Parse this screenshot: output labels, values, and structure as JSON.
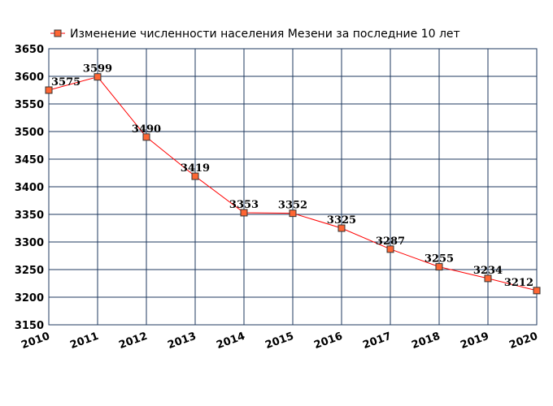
{
  "chart_data": {
    "type": "line",
    "title": "Изменение численности населения Мезени за последние 10 лет",
    "x": [
      "2010",
      "2011",
      "2012",
      "2013",
      "2014",
      "2015",
      "2016",
      "2017",
      "2018",
      "2019",
      "2020"
    ],
    "series": [
      {
        "name": "Изменение численности населения Мезени за последние 10 лет",
        "values": [
          3575,
          3599,
          3490,
          3419,
          3353,
          3352,
          3325,
          3287,
          3255,
          3234,
          3212
        ],
        "labels": [
          "3575",
          "3599",
          "3490",
          "3419",
          "3353",
          "3352",
          "3325",
          "3287",
          "3255",
          "3234",
          "3212"
        ]
      }
    ],
    "y_ticks": [
      "3150",
      "3200",
      "3250",
      "3300",
      "3350",
      "3400",
      "3450",
      "3500",
      "3550",
      "3600",
      "3650"
    ],
    "ylim": [
      3150,
      3650
    ],
    "xlabel": "",
    "ylabel": "",
    "grid": true,
    "legend_position": "top",
    "colors": {
      "line": "#ff0000",
      "marker_fill": "#ff6633",
      "marker_stroke": "#333333",
      "grid": "#1f3a5f"
    }
  }
}
